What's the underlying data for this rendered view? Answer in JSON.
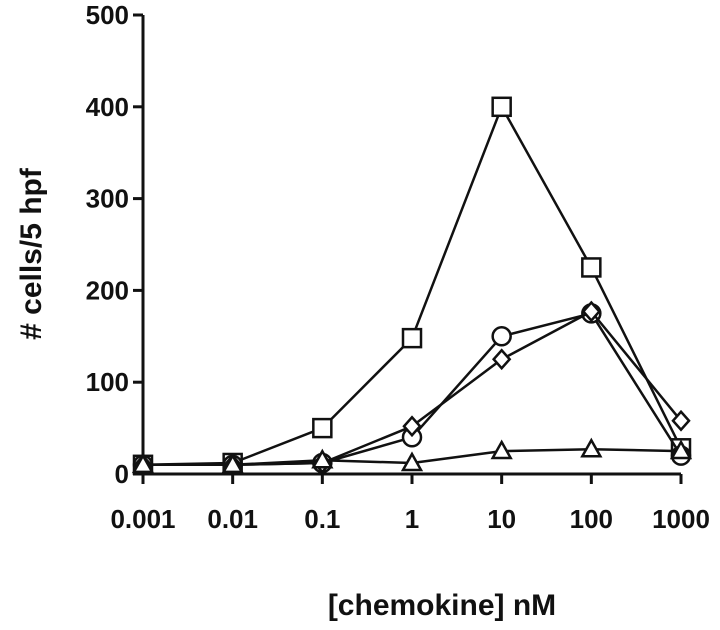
{
  "chart_data": {
    "type": "line",
    "title": "",
    "xlabel": "[chemokine] nM",
    "ylabel": "# cells/5 hpf",
    "x_scale": "log",
    "xlim": [
      0.001,
      1000
    ],
    "ylim": [
      0,
      500
    ],
    "x_ticks": [
      "0.001",
      "0.01",
      "0.1",
      "1",
      "10",
      "100",
      "1000"
    ],
    "y_ticks": [
      "0",
      "100",
      "200",
      "300",
      "400",
      "500"
    ],
    "grid": false,
    "legend": "none",
    "colors": {
      "line": "#111111",
      "marker_fill": "#ffffff",
      "background": "#ffffff"
    },
    "series": [
      {
        "marker": "square",
        "x": [
          0.001,
          0.01,
          0.1,
          1,
          10,
          100,
          1000
        ],
        "y": [
          10,
          12,
          50,
          148,
          400,
          225,
          28
        ]
      },
      {
        "marker": "circle",
        "x": [
          0.001,
          0.01,
          0.1,
          1,
          10,
          100,
          1000
        ],
        "y": [
          10,
          10,
          12,
          40,
          150,
          175,
          20
        ]
      },
      {
        "marker": "diamond",
        "x": [
          0.001,
          0.01,
          0.1,
          1,
          10,
          100,
          1000
        ],
        "y": [
          10,
          10,
          12,
          52,
          125,
          177,
          58
        ]
      },
      {
        "marker": "triangle",
        "x": [
          0.001,
          0.01,
          0.1,
          1,
          10,
          100,
          1000
        ],
        "y": [
          10,
          10,
          15,
          12,
          25,
          27,
          25
        ]
      }
    ]
  }
}
